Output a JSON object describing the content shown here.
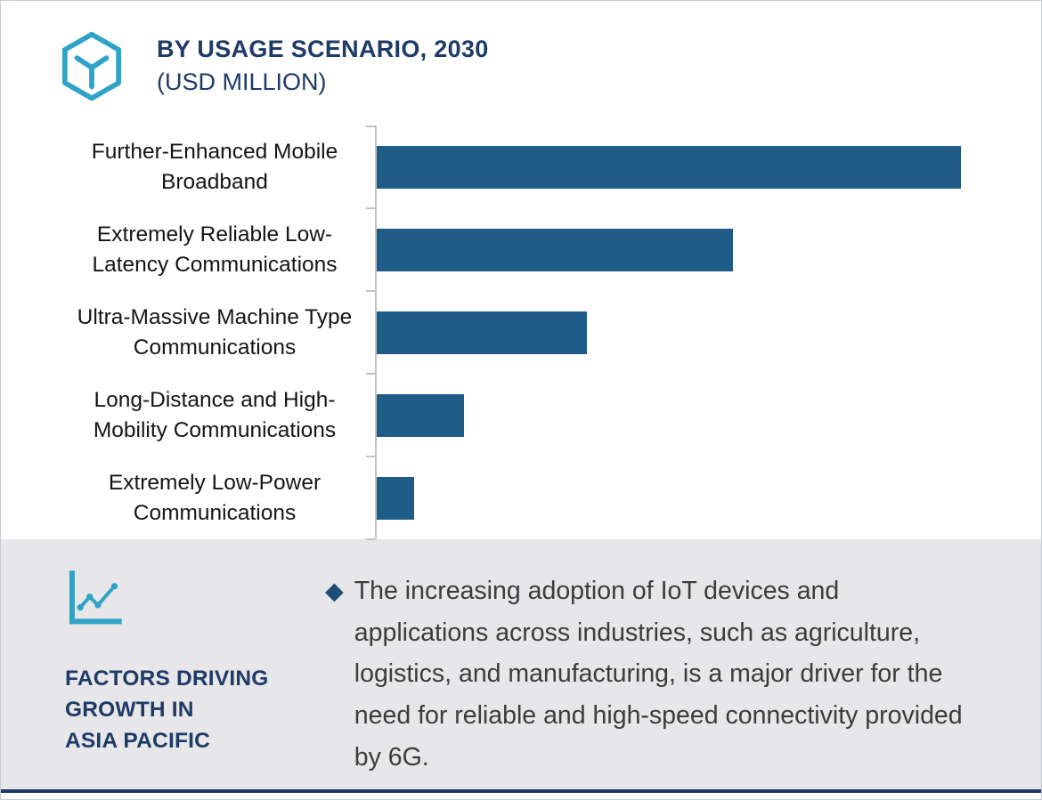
{
  "header": {
    "title": "BY USAGE SCENARIO, 2030",
    "subtitle": "(USD MILLION)",
    "icon": "hexagon-y-icon"
  },
  "chart_data": {
    "type": "bar",
    "orientation": "horizontal",
    "title": "BY USAGE SCENARIO, 2030",
    "subtitle": "(USD MILLION)",
    "categories": [
      "Further-Enhanced Mobile\nBroadband",
      "Extremely Reliable Low-\nLatency Communications",
      "Ultra-Massive Machine Type\nCommunications",
      "Long-Distance and High-\nMobility Communications",
      "Extremely Low-Power\nCommunications"
    ],
    "values": [
      100,
      61,
      36,
      15,
      6.4
    ],
    "value_unit": "relative bar length (% of largest bar); no numeric data labels shown",
    "xlim": [
      0,
      108
    ],
    "bar_color": "#1f5c87",
    "axis_color": "#c2c2c2",
    "gridlines": false,
    "legend": false,
    "data_labels": false
  },
  "footer": {
    "icon": "growth-chart-icon",
    "heading_lines": [
      "FACTORS DRIVING",
      "GROWTH IN",
      "ASIA PACIFIC"
    ],
    "bullet_marker": "◆",
    "bullet_text": "The increasing adoption of IoT devices and applications across industries, such as agriculture, logistics, and manufacturing, is a major driver for the need for reliable and high-speed connectivity provided by 6G."
  },
  "colors": {
    "teal_icon": "#2fa3c6",
    "navy_text": "#1e3a67",
    "bar_blue": "#1f5c87",
    "panel_gray": "#e7e6e9",
    "bullet_diamond": "#1f4e79",
    "body_text": "#3c3c3c",
    "bottom_rule": "#1e3a67"
  }
}
